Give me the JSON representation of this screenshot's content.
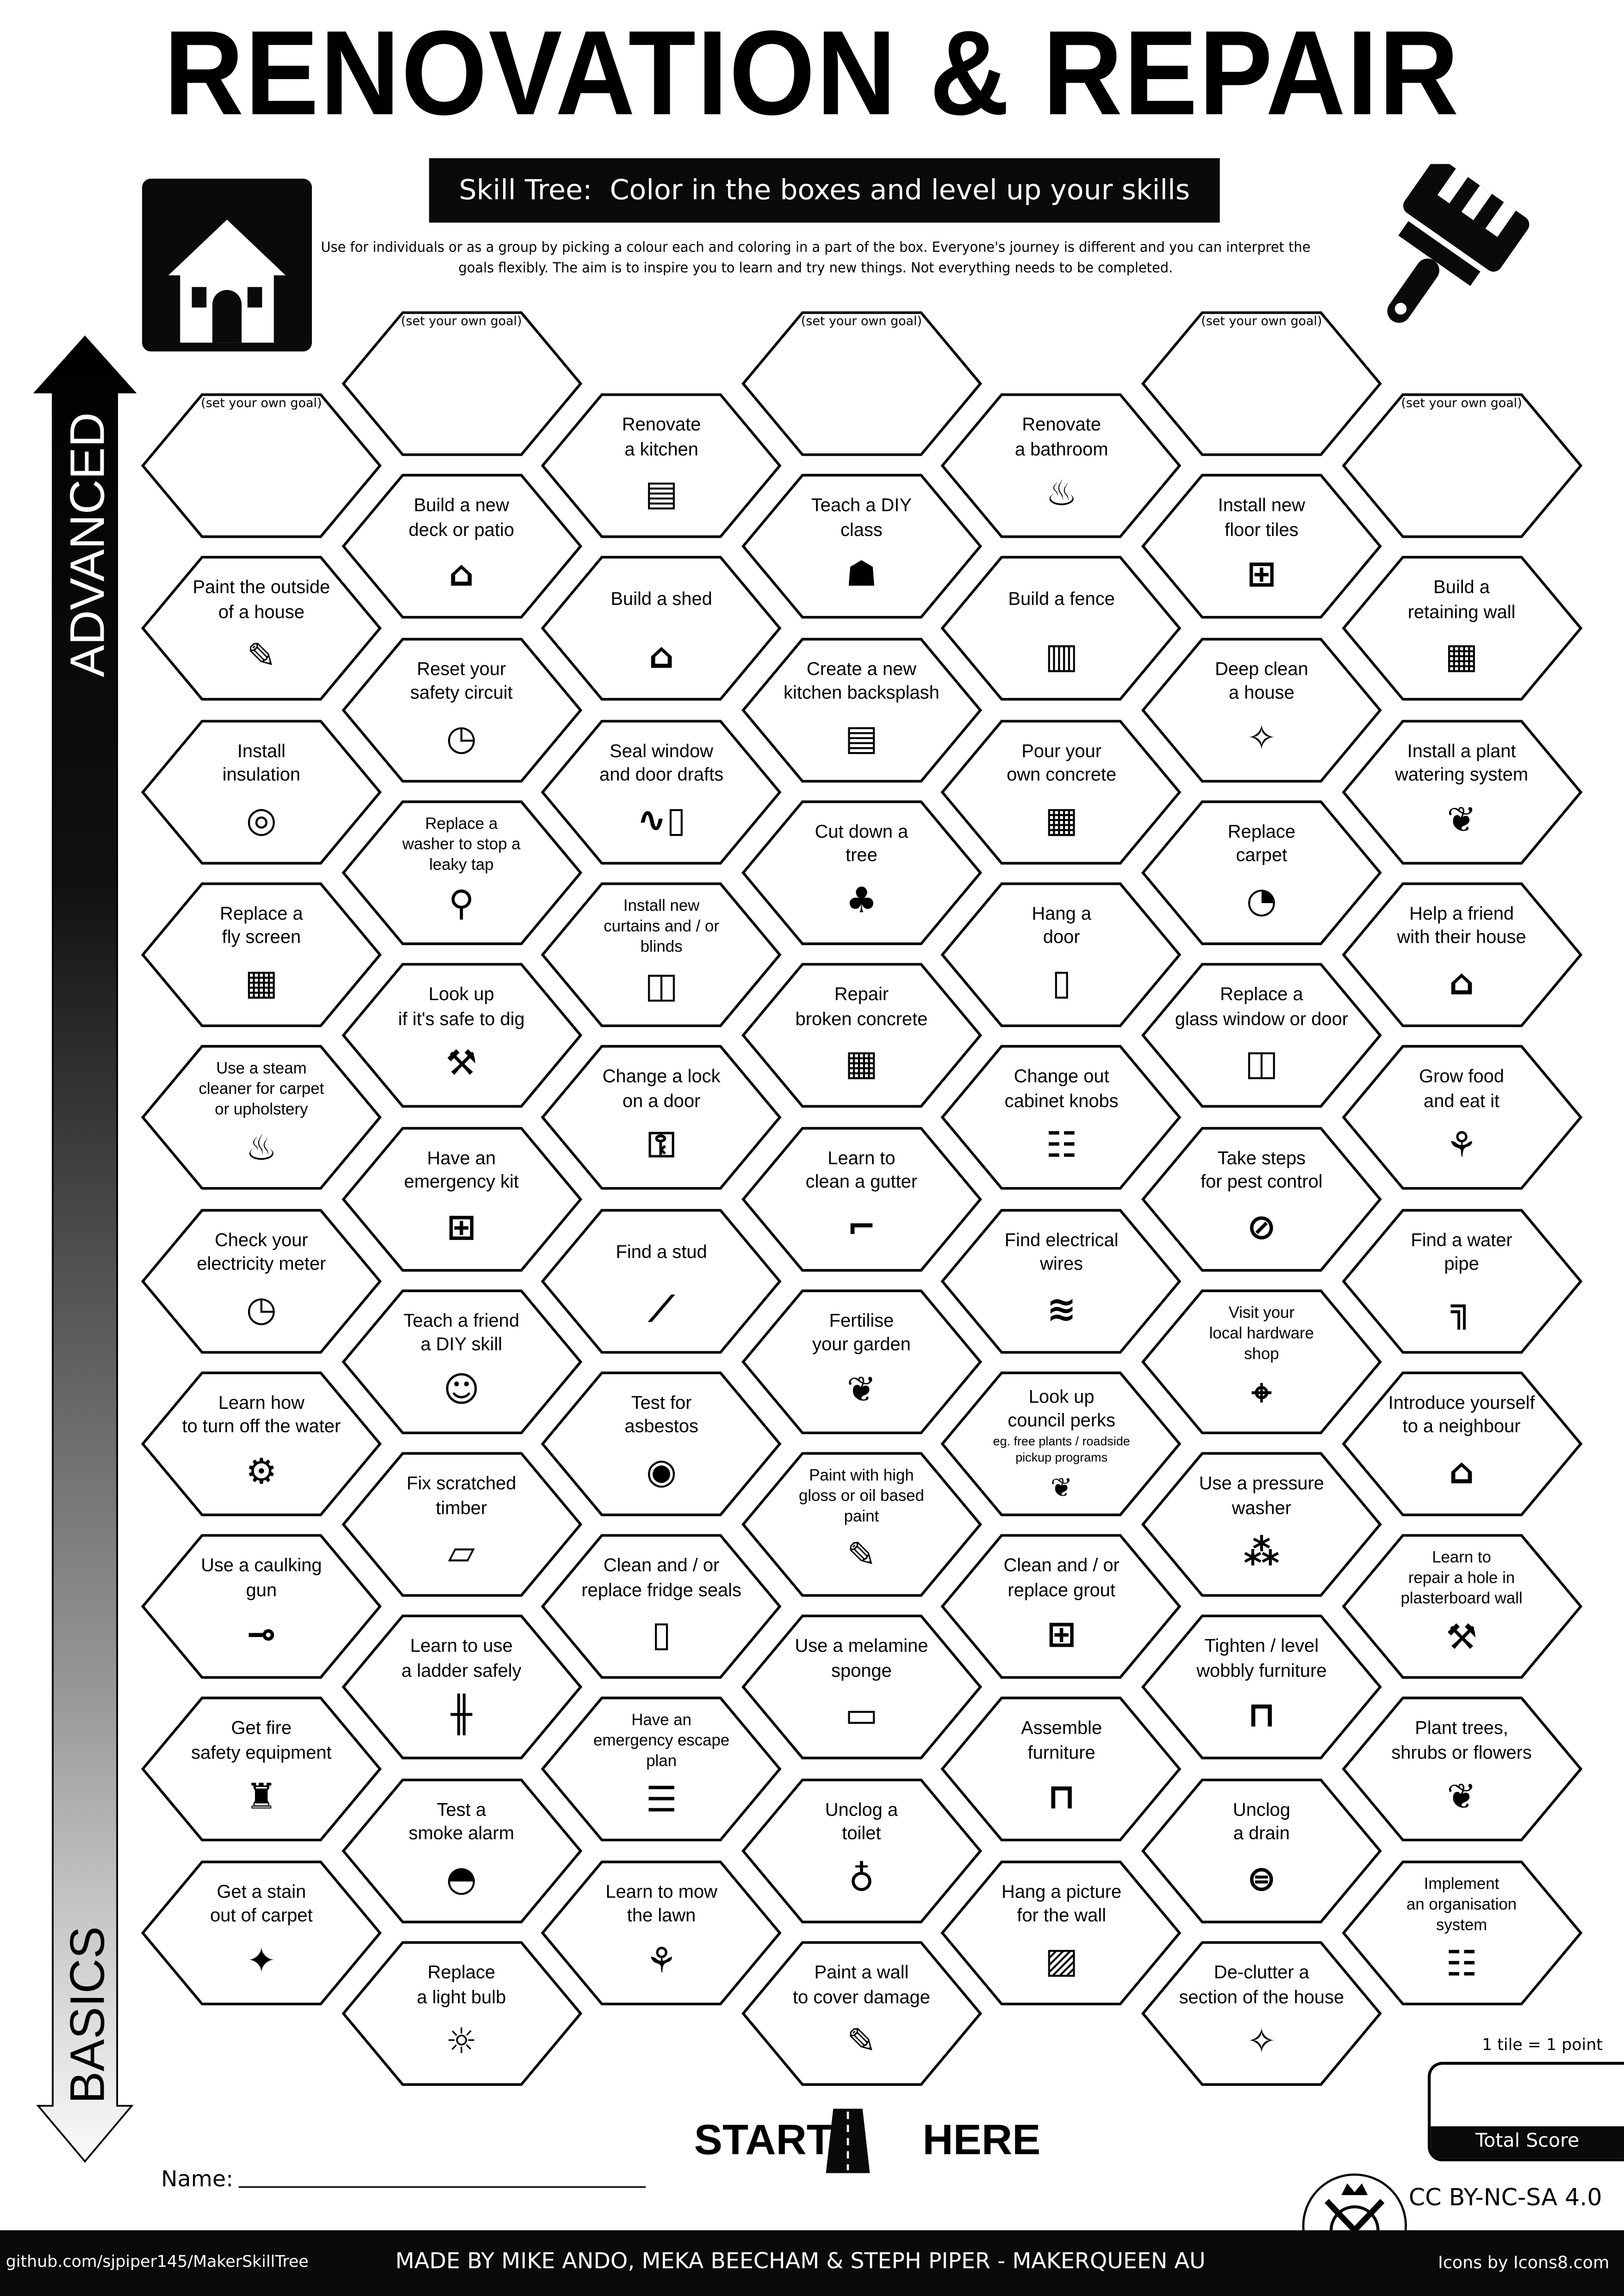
{
  "header": {
    "title": "RENOVATION & REPAIR",
    "subtitle": "Skill Tree:  Color in the boxes and level up your skills",
    "description": "Use for individuals or as a group by picking a colour each and coloring in a part of the box.  Everyone's journey is different and you can interpret the goals flexibly.  The aim is to inspire you to learn and try new things. Not everything needs to be completed.",
    "left_icon": "house-icon",
    "right_icon": "paintbrush-icon"
  },
  "axis": {
    "top_label": "ADVANCED",
    "bottom_label": "BASICS"
  },
  "goal_placeholder": "(set your own goal)",
  "columns": [
    [
      {
        "goal": true
      },
      {
        "lines": [
          "Paint the outside",
          "of a house"
        ],
        "icon": "paintbrush"
      },
      {
        "lines": [
          "Install",
          "insulation"
        ],
        "icon": "insulation-roll"
      },
      {
        "lines": [
          "Replace a",
          "fly screen"
        ],
        "icon": "grid"
      },
      {
        "lines": [
          "Use a steam",
          "cleaner for carpet",
          "or upholstery"
        ],
        "icon": "steam"
      },
      {
        "lines": [
          "Check your",
          "electricity meter"
        ],
        "icon": "gauge"
      },
      {
        "lines": [
          "Learn how",
          "to turn off the water"
        ],
        "icon": "valve"
      },
      {
        "lines": [
          "Use a caulking",
          "gun"
        ],
        "icon": "caulking-gun"
      },
      {
        "lines": [
          "Get fire",
          "safety equipment"
        ],
        "icon": "fire-extinguisher"
      },
      {
        "lines": [
          "Get a stain",
          "out of carpet"
        ],
        "icon": "sparkle"
      }
    ],
    [
      {
        "goal": true
      },
      {
        "lines": [
          "Build a new",
          "deck or patio"
        ],
        "icon": "house-deck"
      },
      {
        "lines": [
          "Reset your",
          "safety circuit"
        ],
        "icon": "gauge"
      },
      {
        "lines": [
          "Replace a",
          "washer to stop a",
          "leaky tap"
        ],
        "icon": "tap"
      },
      {
        "lines": [
          "Look up",
          "if it's safe to dig"
        ],
        "icon": "shovel"
      },
      {
        "lines": [
          "Have an",
          "emergency kit"
        ],
        "icon": "first-aid-kit"
      },
      {
        "lines": [
          "Teach a friend",
          "a DIY skill"
        ],
        "icon": "teacher"
      },
      {
        "lines": [
          "Fix scratched",
          "timber"
        ],
        "icon": "timber"
      },
      {
        "lines": [
          "Learn to use",
          "a ladder safely"
        ],
        "icon": "ladder"
      },
      {
        "lines": [
          "Test a",
          "smoke alarm"
        ],
        "icon": "smoke-alarm"
      },
      {
        "lines": [
          "Replace",
          "a light bulb"
        ],
        "icon": "light-bulb"
      }
    ],
    [
      {
        "lines": [
          "Renovate",
          "a kitchen"
        ],
        "icon": "kitchen"
      },
      {
        "lines": [
          "Build a shed"
        ],
        "icon": "shed"
      },
      {
        "lines": [
          "Seal window",
          "and door drafts"
        ],
        "icon": "door-draft"
      },
      {
        "lines": [
          "Install new",
          "curtains and / or",
          "blinds"
        ],
        "icon": "curtains"
      },
      {
        "lines": [
          "Change a lock",
          "on a door"
        ],
        "icon": "door-lock"
      },
      {
        "lines": [
          "Find a stud"
        ],
        "icon": "nail"
      },
      {
        "lines": [
          "Test for",
          "asbestos"
        ],
        "icon": "respirator"
      },
      {
        "lines": [
          "Clean and / or",
          "replace fridge seals"
        ],
        "icon": "fridge"
      },
      {
        "lines": [
          "Have an",
          "emergency escape",
          "plan"
        ],
        "icon": "checklist"
      },
      {
        "lines": [
          "Learn to mow",
          "the lawn"
        ],
        "icon": "lawn-mower"
      }
    ],
    [
      {
        "goal": true
      },
      {
        "lines": [
          "Teach a DIY",
          "class"
        ],
        "icon": "teacher-board"
      },
      {
        "lines": [
          "Create a new",
          "kitchen backsplash"
        ],
        "icon": "kitchen"
      },
      {
        "lines": [
          "Cut down a",
          "tree"
        ],
        "icon": "tree-stump"
      },
      {
        "lines": [
          "Repair",
          "broken concrete"
        ],
        "icon": "concrete"
      },
      {
        "lines": [
          "Learn to",
          "clean a gutter"
        ],
        "icon": "gutter"
      },
      {
        "lines": [
          "Fertilise",
          "your garden"
        ],
        "icon": "sprout"
      },
      {
        "lines": [
          "Paint with high",
          "gloss or oil based",
          "paint"
        ],
        "icon": "paintbrush"
      },
      {
        "lines": [
          "Use a melamine",
          "sponge"
        ],
        "icon": "sponge"
      },
      {
        "lines": [
          "Unclog a",
          "toilet"
        ],
        "icon": "toilet"
      },
      {
        "lines": [
          "Paint a wall",
          "to cover damage"
        ],
        "icon": "paintbrush"
      }
    ],
    [
      {
        "lines": [
          "Renovate",
          "a bathroom"
        ],
        "icon": "bathtub"
      },
      {
        "lines": [
          "Build a fence"
        ],
        "icon": "fence"
      },
      {
        "lines": [
          "Pour your",
          "own concrete"
        ],
        "icon": "concrete"
      },
      {
        "lines": [
          "Hang a",
          "door"
        ],
        "icon": "door"
      },
      {
        "lines": [
          "Change out",
          "cabinet knobs"
        ],
        "icon": "cabinet"
      },
      {
        "lines": [
          "Find electrical",
          "wires"
        ],
        "icon": "wires"
      },
      {
        "lines": [
          "Look up",
          "council perks"
        ],
        "note": [
          "eg. free plants / roadside",
          "pickup programs"
        ],
        "icon": "sprout"
      },
      {
        "lines": [
          "Clean and / or",
          "replace grout"
        ],
        "icon": "tiles"
      },
      {
        "lines": [
          "Assemble",
          "furniture"
        ],
        "icon": "table"
      },
      {
        "lines": [
          "Hang a picture",
          "for the wall"
        ],
        "icon": "picture"
      }
    ],
    [
      {
        "goal": true
      },
      {
        "lines": [
          "Install new",
          "floor tiles"
        ],
        "icon": "tiles"
      },
      {
        "lines": [
          "Deep clean",
          "a house"
        ],
        "icon": "clean-hands"
      },
      {
        "lines": [
          "Replace",
          "carpet"
        ],
        "icon": "carpet-roll"
      },
      {
        "lines": [
          "Replace a",
          "glass window or door"
        ],
        "icon": "window"
      },
      {
        "lines": [
          "Take steps",
          "for pest control"
        ],
        "icon": "no-bugs"
      },
      {
        "lines": [
          "Visit your",
          "local hardware",
          "shop"
        ],
        "icon": "location-pin"
      },
      {
        "lines": [
          "Use a pressure",
          "washer"
        ],
        "icon": "sprinkler"
      },
      {
        "lines": [
          "Tighten / level",
          "wobbly furniture"
        ],
        "icon": "table"
      },
      {
        "lines": [
          "Unclog",
          "a drain"
        ],
        "icon": "drain"
      },
      {
        "lines": [
          "De-clutter a",
          "section of the house"
        ],
        "icon": "clean-hands"
      }
    ],
    [
      {
        "goal": true
      },
      {
        "lines": [
          "Build a",
          "retaining wall"
        ],
        "icon": "brick-wall"
      },
      {
        "lines": [
          "Install a plant",
          "watering system"
        ],
        "icon": "sprout"
      },
      {
        "lines": [
          "Help a friend",
          "with their house"
        ],
        "icon": "home-person"
      },
      {
        "lines": [
          "Grow food",
          "and eat it"
        ],
        "icon": "carrot"
      },
      {
        "lines": [
          "Find a water",
          "pipe"
        ],
        "icon": "pipe"
      },
      {
        "lines": [
          "Introduce yourself",
          "to a neighbour"
        ],
        "icon": "home-person"
      },
      {
        "lines": [
          "Learn to",
          "repair a hole in",
          "plasterboard wall"
        ],
        "icon": "plasterer"
      },
      {
        "lines": [
          "Plant trees,",
          "shrubs or flowers"
        ],
        "icon": "sprout"
      },
      {
        "lines": [
          "Implement",
          "an organisation",
          "system"
        ],
        "icon": "shelf"
      }
    ]
  ],
  "start": {
    "start_label": "START",
    "here_label": "HERE",
    "icon": "road-icon"
  },
  "name_label": "Name:",
  "score": {
    "note": "1 tile = 1 point",
    "label": "Total Score"
  },
  "license": "CC BY-NC-SA 4.0",
  "footer": {
    "github": "github.com/sjpiper145/MakerSkillTree",
    "credits": "MADE BY MIKE ANDO, MEKA BEECHAM & STEPH PIPER  -  MAKERQUEEN AU",
    "icons_credit": "Icons by Icons8.com"
  }
}
